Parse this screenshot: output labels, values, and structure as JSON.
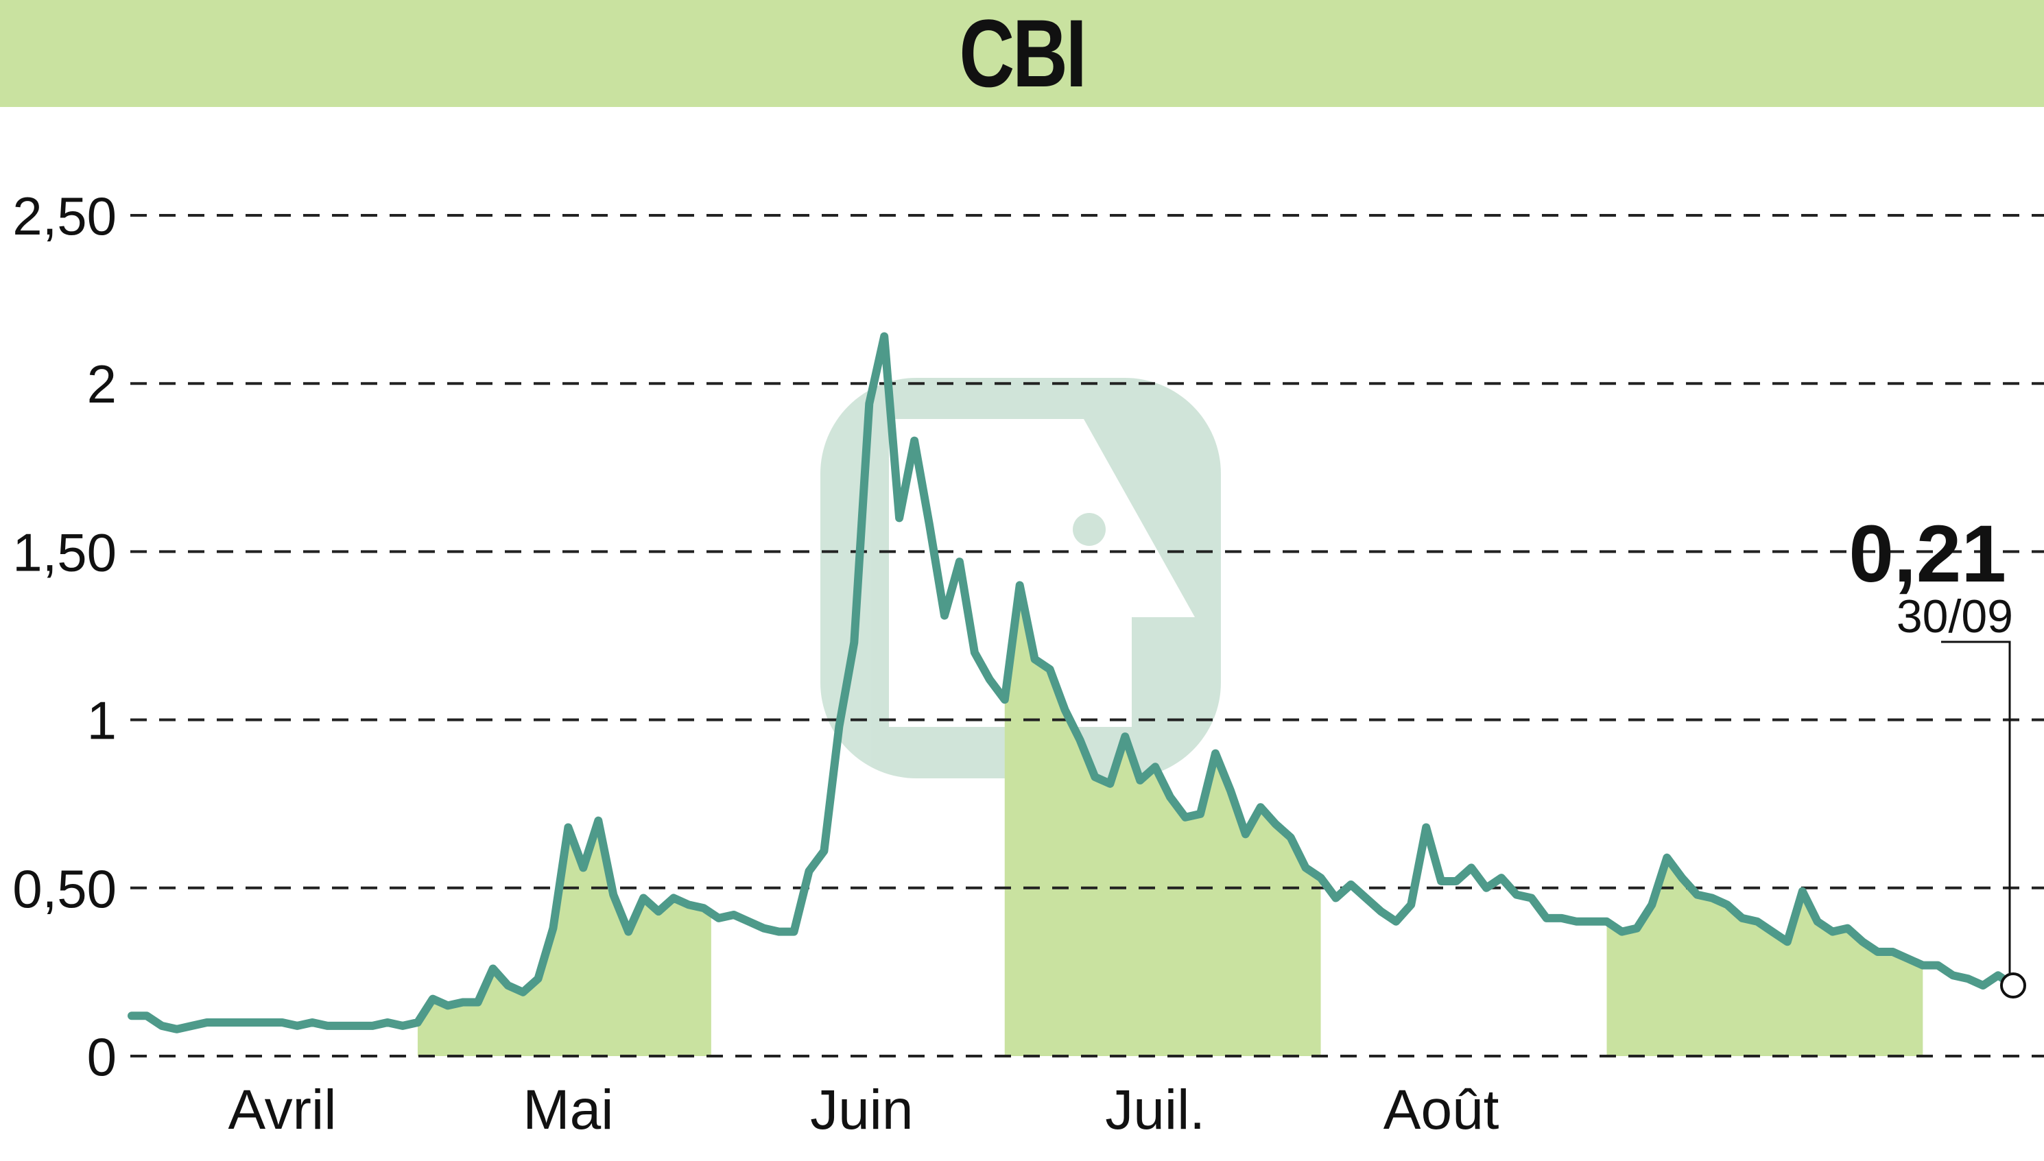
{
  "chart_data": {
    "type": "line",
    "title": "CBI",
    "xlabel": "",
    "ylabel": "",
    "ylim": [
      0,
      2.5
    ],
    "y_ticks": [
      {
        "value": 0,
        "label": "0"
      },
      {
        "value": 0.5,
        "label": "0,50"
      },
      {
        "value": 1,
        "label": "1"
      },
      {
        "value": 1.5,
        "label": "1,50"
      },
      {
        "value": 2,
        "label": "2"
      },
      {
        "value": 2.5,
        "label": "2,50"
      }
    ],
    "x_ticks": [
      {
        "x": 20,
        "label": "Avril"
      },
      {
        "x": 58,
        "label": "Mai"
      },
      {
        "x": 97,
        "label": "Juin"
      },
      {
        "x": 136,
        "label": "Juil."
      },
      {
        "x": 174,
        "label": "Août"
      }
    ],
    "x_range": [
      0,
      238
    ],
    "grid": "horizontal dashed",
    "shaded_month_spans": [
      [
        38,
        77
      ],
      [
        116,
        158
      ],
      [
        196,
        238
      ]
    ],
    "series": [
      {
        "points": [
          [
            0,
            0.12
          ],
          [
            2,
            0.12
          ],
          [
            4,
            0.09
          ],
          [
            6,
            0.08
          ],
          [
            8,
            0.09
          ],
          [
            10,
            0.1
          ],
          [
            12,
            0.1
          ],
          [
            14,
            0.1
          ],
          [
            16,
            0.1
          ],
          [
            18,
            0.1
          ],
          [
            20,
            0.1
          ],
          [
            22,
            0.09
          ],
          [
            24,
            0.1
          ],
          [
            26,
            0.09
          ],
          [
            28,
            0.09
          ],
          [
            30,
            0.09
          ],
          [
            32,
            0.09
          ],
          [
            34,
            0.1
          ],
          [
            36,
            0.09
          ],
          [
            38,
            0.1
          ],
          [
            40,
            0.17
          ],
          [
            42,
            0.15
          ],
          [
            44,
            0.16
          ],
          [
            46,
            0.16
          ],
          [
            48,
            0.26
          ],
          [
            50,
            0.21
          ],
          [
            52,
            0.19
          ],
          [
            54,
            0.23
          ],
          [
            56,
            0.38
          ],
          [
            58,
            0.68
          ],
          [
            60,
            0.56
          ],
          [
            62,
            0.7
          ],
          [
            64,
            0.48
          ],
          [
            66,
            0.37
          ],
          [
            68,
            0.47
          ],
          [
            70,
            0.43
          ],
          [
            72,
            0.47
          ],
          [
            74,
            0.45
          ],
          [
            76,
            0.44
          ],
          [
            78,
            0.41
          ],
          [
            80,
            0.42
          ],
          [
            82,
            0.4
          ],
          [
            84,
            0.38
          ],
          [
            86,
            0.37
          ],
          [
            88,
            0.37
          ],
          [
            90,
            0.55
          ],
          [
            92,
            0.61
          ],
          [
            94,
            0.98
          ],
          [
            96,
            1.23
          ],
          [
            98,
            1.94
          ],
          [
            100,
            2.14
          ],
          [
            102,
            1.6
          ],
          [
            104,
            1.83
          ],
          [
            106,
            1.58
          ],
          [
            108,
            1.31
          ],
          [
            110,
            1.47
          ],
          [
            112,
            1.2
          ],
          [
            114,
            1.12
          ],
          [
            116,
            1.06
          ],
          [
            118,
            1.4
          ],
          [
            120,
            1.18
          ],
          [
            122,
            1.15
          ],
          [
            124,
            1.03
          ],
          [
            126,
            0.94
          ],
          [
            128,
            0.83
          ],
          [
            130,
            0.81
          ],
          [
            132,
            0.95
          ],
          [
            134,
            0.82
          ],
          [
            136,
            0.86
          ],
          [
            138,
            0.77
          ],
          [
            140,
            0.71
          ],
          [
            142,
            0.72
          ],
          [
            144,
            0.9
          ],
          [
            146,
            0.79
          ],
          [
            148,
            0.66
          ],
          [
            150,
            0.74
          ],
          [
            152,
            0.69
          ],
          [
            154,
            0.65
          ],
          [
            156,
            0.56
          ],
          [
            158,
            0.53
          ],
          [
            160,
            0.47
          ],
          [
            162,
            0.51
          ],
          [
            164,
            0.47
          ],
          [
            166,
            0.43
          ],
          [
            168,
            0.4
          ],
          [
            170,
            0.45
          ],
          [
            172,
            0.68
          ],
          [
            174,
            0.52
          ],
          [
            176,
            0.52
          ],
          [
            178,
            0.56
          ],
          [
            180,
            0.5
          ],
          [
            182,
            0.53
          ],
          [
            184,
            0.48
          ],
          [
            186,
            0.47
          ],
          [
            188,
            0.41
          ],
          [
            190,
            0.41
          ],
          [
            192,
            0.4
          ],
          [
            194,
            0.4
          ],
          [
            196,
            0.4
          ],
          [
            198,
            0.37
          ],
          [
            200,
            0.38
          ],
          [
            202,
            0.45
          ],
          [
            204,
            0.59
          ],
          [
            206,
            0.53
          ],
          [
            208,
            0.48
          ],
          [
            210,
            0.47
          ],
          [
            212,
            0.45
          ],
          [
            214,
            0.41
          ],
          [
            216,
            0.4
          ],
          [
            218,
            0.37
          ],
          [
            220,
            0.34
          ],
          [
            222,
            0.49
          ],
          [
            224,
            0.4
          ],
          [
            226,
            0.37
          ],
          [
            228,
            0.38
          ],
          [
            230,
            0.34
          ],
          [
            232,
            0.31
          ],
          [
            234,
            0.31
          ],
          [
            236,
            0.29
          ],
          [
            238,
            0.27
          ],
          [
            240,
            0.27
          ],
          [
            242,
            0.24
          ],
          [
            244,
            0.23
          ],
          [
            246,
            0.21
          ],
          [
            248,
            0.24
          ],
          [
            250,
            0.21
          ]
        ],
        "color": "#4e9a8a"
      }
    ],
    "last_value": {
      "label": "0,21",
      "date": "30/09"
    },
    "colors": {
      "area_fill": "#c9e2a0",
      "line": "#4e9a8a",
      "header_band": "#c9e2a0",
      "grid": "#222222"
    }
  }
}
